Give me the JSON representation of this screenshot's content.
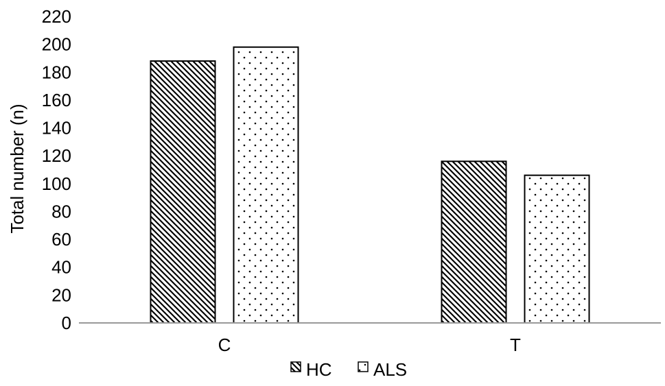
{
  "chart_data": {
    "type": "bar",
    "categories": [
      "C",
      "T"
    ],
    "series": [
      {
        "name": "HC",
        "values": [
          188,
          116
        ],
        "pattern": "diagonal-hatch"
      },
      {
        "name": "ALS",
        "values": [
          198,
          106
        ],
        "pattern": "dots"
      }
    ],
    "title": "",
    "xlabel": "",
    "ylabel": "Total number (n)",
    "ylim": [
      0,
      220
    ],
    "yticks": [
      "0",
      "20",
      "40",
      "60",
      "80",
      "100",
      "120",
      "140",
      "160",
      "180",
      "200",
      "220"
    ],
    "grid": false,
    "legend": "bottom-center",
    "colors": {
      "stroke": "#000000",
      "fill": "#ffffff"
    }
  }
}
